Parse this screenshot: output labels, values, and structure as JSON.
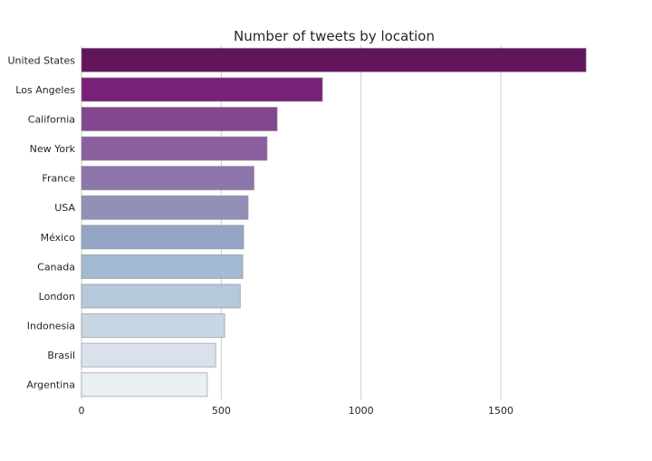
{
  "chart_data": {
    "type": "bar",
    "orientation": "horizontal",
    "title": "Number of tweets by location",
    "xlabel": "",
    "ylabel": "",
    "categories": [
      "United States",
      "Los Angeles",
      "California",
      "New York",
      "France",
      "USA",
      "México",
      "Canada",
      "London",
      "Indonesia",
      "Brasil",
      "Argentina"
    ],
    "values": [
      1805,
      862,
      700,
      664,
      617,
      596,
      580,
      577,
      568,
      512,
      480,
      450
    ],
    "xlim": [
      0,
      1960
    ],
    "xticks": [
      0,
      500,
      1000,
      1500
    ],
    "xtick_labels": [
      "0",
      "500",
      "1000",
      "1500"
    ],
    "grid": "vertical lines",
    "colors": [
      "#62145c",
      "#782277",
      "#82478f",
      "#8a5f9e",
      "#8c76ac",
      "#9190b7",
      "#95a5c6",
      "#a2bad3",
      "#b5c9da",
      "#c6d6e3",
      "#d9e2ec",
      "#e8f0f4"
    ]
  }
}
